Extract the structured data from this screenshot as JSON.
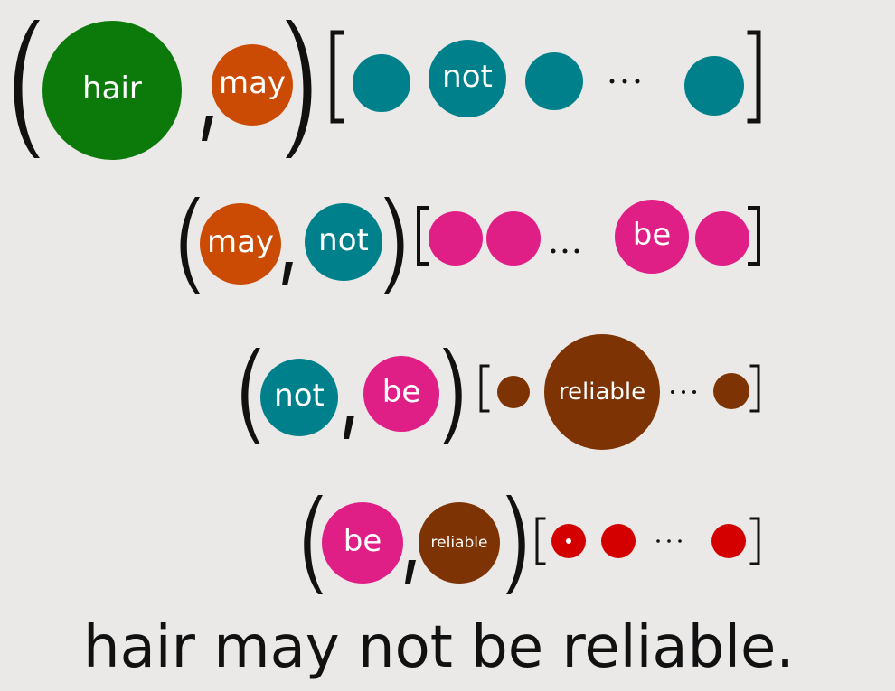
{
  "colors": {
    "background": "#ebe9e8",
    "hair": "#0b7a0b",
    "may": "#cc4b04",
    "not": "#00808a",
    "be": "#e01f86",
    "reliable": "#7d3303",
    "red": "#d40000"
  },
  "rows": [
    {
      "pair": [
        "hair",
        "may"
      ],
      "candidates": [
        "not"
      ]
    },
    {
      "pair": [
        "may",
        "not"
      ],
      "candidates": [
        "be"
      ]
    },
    {
      "pair": [
        "not",
        "be"
      ],
      "candidates": [
        "reliable"
      ]
    },
    {
      "pair": [
        "be",
        "reliable"
      ],
      "candidates": []
    }
  ],
  "sentence": "hair may not be reliable."
}
